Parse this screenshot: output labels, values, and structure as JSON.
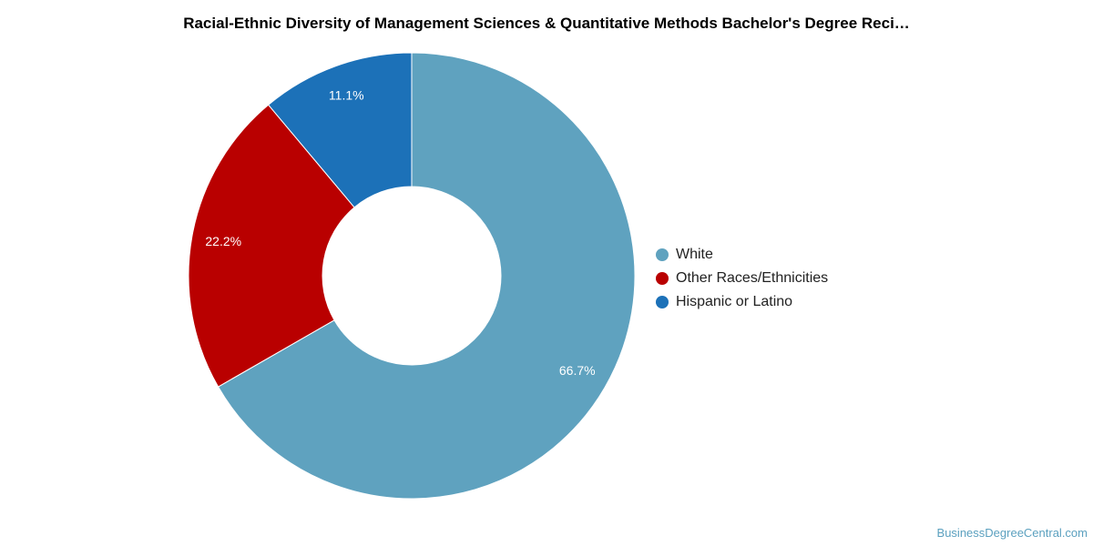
{
  "chart_data": {
    "type": "pie",
    "title": "Racial-Ethnic Diversity of Management Sciences & Quantitative Methods Bachelor's Degree Reci…",
    "categories": [
      "White",
      "Other Races/Ethnicities",
      "Hispanic or Latino"
    ],
    "values": [
      66.7,
      22.2,
      11.1
    ],
    "value_labels": [
      "66.7%",
      "22.2%",
      "11.1%"
    ],
    "colors": [
      "#5fa2bf",
      "#b90000",
      "#1c71b8"
    ],
    "donut": true,
    "legend": "right"
  },
  "source": "BusinessDegreeCentral.com"
}
